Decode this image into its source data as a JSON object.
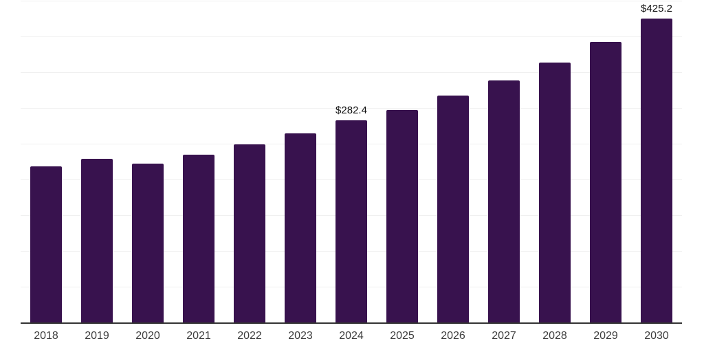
{
  "chart_data": {
    "type": "bar",
    "title": "",
    "xlabel": "",
    "ylabel": "",
    "categories": [
      "2018",
      "2019",
      "2020",
      "2021",
      "2022",
      "2023",
      "2024",
      "2025",
      "2026",
      "2027",
      "2028",
      "2029",
      "2030"
    ],
    "values": [
      218.3,
      228.8,
      222.1,
      234.6,
      249.0,
      264.4,
      282.4,
      297.1,
      317.3,
      338.5,
      363.5,
      392.3,
      425.2
    ],
    "labels": [
      "",
      "",
      "",
      "",
      "",
      "",
      "$282.4",
      "",
      "",
      "",
      "",
      "",
      "$425.2"
    ],
    "value_prefix": "$",
    "ylim": [
      0,
      450
    ],
    "gridline_step": 50,
    "y_tick_labels_visible": false,
    "grid": "horizontal",
    "legend": "none"
  },
  "colors": {
    "bar": "#38124E",
    "gridline": "#f0f0f0",
    "axis_line": "#333333",
    "tick_label": "#3d3d3d",
    "value_label": "#111111",
    "background": "#ffffff"
  }
}
